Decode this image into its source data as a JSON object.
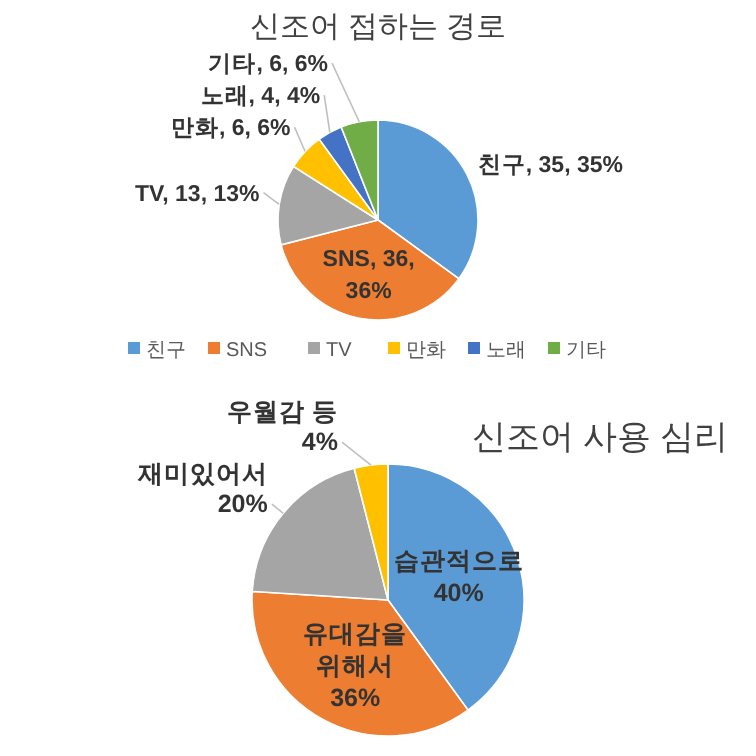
{
  "chart_data": [
    {
      "type": "pie",
      "title": "신조어 접하는 경로",
      "categories": [
        "친구",
        "SNS",
        "TV",
        "만화",
        "노래",
        "기타"
      ],
      "values": [
        35,
        36,
        13,
        6,
        4,
        6
      ],
      "colors": [
        "#5b9bd5",
        "#ed7d31",
        "#a5a5a5",
        "#ffc000",
        "#4472c4",
        "#70ad47"
      ],
      "value_labels": [
        "친구, 35, 35%",
        "SNS, 36,\n36%",
        "TV, 13, 13%",
        "만화, 6, 6%",
        "노래, 4, 4%",
        "기타, 6, 6%"
      ],
      "legend": "bottom"
    },
    {
      "type": "pie",
      "title": "신조어 사용 심리",
      "categories": [
        "습관적으로",
        "유대감을 위해서",
        "재미있어서",
        "우월감 등"
      ],
      "values": [
        40,
        36,
        20,
        4
      ],
      "colors": [
        "#5b9bd5",
        "#ed7d31",
        "#a5a5a5",
        "#ffc000"
      ],
      "value_labels": [
        "40%",
        "36%",
        "20%",
        "4%"
      ]
    }
  ]
}
